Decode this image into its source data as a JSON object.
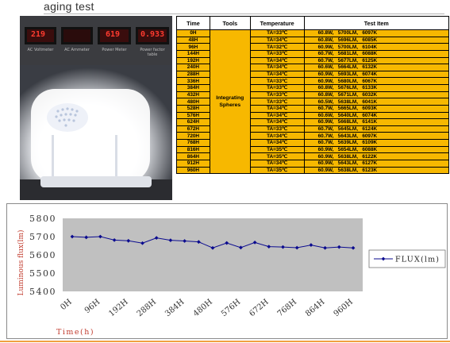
{
  "page": {
    "title": "aging test"
  },
  "photo": {
    "meters": [
      {
        "reading": "219",
        "label": "AC Voltmeter"
      },
      {
        "reading": "",
        "label": "AC Ammeter"
      },
      {
        "reading": "619",
        "label": "Power Meter"
      },
      {
        "reading": "0.933",
        "label": "Power factor table"
      }
    ],
    "meter_sublabels": [
      "",
      "",
      "",
      ""
    ]
  },
  "table": {
    "headers": [
      "Time",
      "Tools",
      "Temperature",
      "Test Item"
    ],
    "tools_label": "Integrating Spheres",
    "rows": [
      {
        "time": "0H",
        "temp": "TA=33℃",
        "test": "60.8W,   5700LM,   6097K"
      },
      {
        "time": "48H",
        "temp": "TA=34℃",
        "test": "60.8W,   5696LM,   6085K"
      },
      {
        "time": "96H",
        "temp": "TA=32℃",
        "test": "60.9W,   5700LM,   6104K"
      },
      {
        "time": "144H",
        "temp": "TA=33℃",
        "test": "60.7W,   5681LM,   6088K"
      },
      {
        "time": "192H",
        "temp": "TA=34℃",
        "test": "60.7W,   5677LM,   6125K"
      },
      {
        "time": "240H",
        "temp": "TA=34℃",
        "test": "60.6W,   5664LM,   6132K"
      },
      {
        "time": "288H",
        "temp": "TA=34℃",
        "test": "60.9W,   5693LM,   6074K"
      },
      {
        "time": "336H",
        "temp": "TA=33℃",
        "test": "60.9W,   5680LM,   6067K"
      },
      {
        "time": "384H",
        "temp": "TA=33℃",
        "test": "60.8W,   5676LM,   6133K"
      },
      {
        "time": "432H",
        "temp": "TA=33℃",
        "test": "60.8W,   5671LM,   6032K"
      },
      {
        "time": "480H",
        "temp": "TA=33℃",
        "test": "60.5W,   5638LM,   6041K"
      },
      {
        "time": "528H",
        "temp": "TA=34℃",
        "test": "60.7W,   5665LM,   6093K"
      },
      {
        "time": "576H",
        "temp": "TA=34℃",
        "test": "60.6W,   5640LM,   6074K"
      },
      {
        "time": "624H",
        "temp": "TA=34℃",
        "test": "60.9W,   5668LM,   6141K"
      },
      {
        "time": "672H",
        "temp": "TA=33℃",
        "test": "60.7W,   5645LM,   6124K"
      },
      {
        "time": "720H",
        "temp": "TA=34℃",
        "test": "60.7W,   5643LM,   6097K"
      },
      {
        "time": "768H",
        "temp": "TA=34℃",
        "test": "60.7W,   5639LM,   6109K"
      },
      {
        "time": "816H",
        "temp": "TA=35℃",
        "test": "60.9W,   5654LM,   6088K"
      },
      {
        "time": "864H",
        "temp": "TA=35℃",
        "test": "60.9W,   5638LM,   6122K"
      },
      {
        "time": "912H",
        "temp": "TA=34℃",
        "test": "60.9W,   5643LM,   6127K"
      },
      {
        "time": "960H",
        "temp": "TA=35℃",
        "test": "60.9W,   5638LM,   6123K"
      }
    ]
  },
  "chart_data": {
    "type": "line",
    "title": "",
    "xlabel": "Time(h)",
    "ylabel": "Luminous flux(lm)",
    "x": [
      "0H",
      "48H",
      "96H",
      "144H",
      "192H",
      "240H",
      "288H",
      "336H",
      "384H",
      "432H",
      "480H",
      "528H",
      "576H",
      "624H",
      "672H",
      "720H",
      "768H",
      "816H",
      "864H",
      "912H",
      "960H"
    ],
    "xtick_labels": [
      "0H",
      "96H",
      "192H",
      "288H",
      "384H",
      "480H",
      "576H",
      "672H",
      "768H",
      "864H",
      "960H"
    ],
    "ylim": [
      5400,
      5800
    ],
    "yticks": [
      "5800",
      "5700",
      "5600",
      "5500",
      "5400"
    ],
    "series": [
      {
        "name": "FLUX(lm)",
        "values": [
          5700,
          5696,
          5700,
          5681,
          5677,
          5664,
          5693,
          5680,
          5676,
          5671,
          5638,
          5665,
          5640,
          5668,
          5645,
          5643,
          5639,
          5654,
          5638,
          5643,
          5638
        ]
      }
    ],
    "legend_position": "right",
    "grid": false,
    "colors": {
      "line": "#0b0b8f",
      "plot_bg": "#c0c0c0",
      "axis_text": "#c0392b",
      "tick_text": "#333333"
    }
  }
}
